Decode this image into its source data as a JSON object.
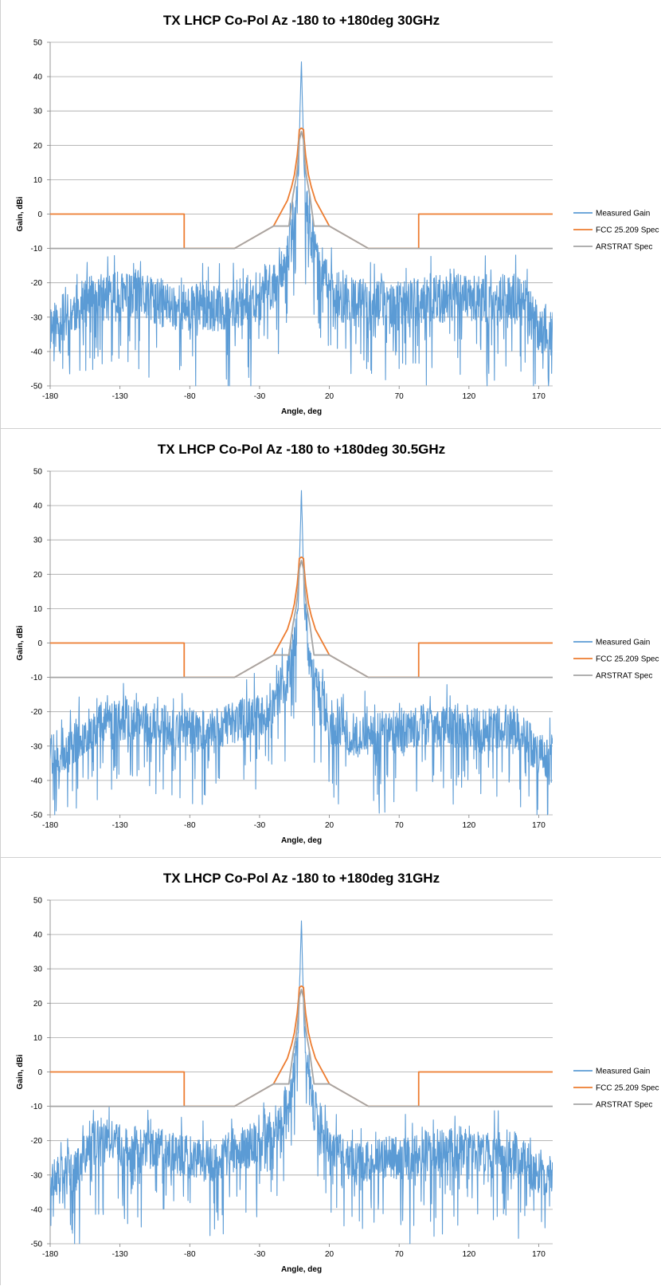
{
  "colors": {
    "measured": "#5B9BD5",
    "fcc": "#ED7D31",
    "arstrat": "#A5A5A5",
    "grid": "#A6A6A6",
    "axis": "#808080",
    "text": "#000000"
  },
  "chart_data": [
    {
      "type": "line",
      "title": "TX LHCP Co-Pol Az -180 to +180deg 30GHz",
      "xlabel": "Angle, deg",
      "ylabel": "Gain, dBi",
      "xlim": [
        -180,
        180
      ],
      "ylim": [
        -50,
        50
      ],
      "xticks": [
        "-180",
        "-130",
        "-80",
        "-30",
        "20",
        "70",
        "120",
        "170"
      ],
      "yticks": [
        "50",
        "40",
        "30",
        "20",
        "10",
        "0",
        "-10",
        "-20",
        "-30",
        "-40",
        "-50"
      ],
      "grid": true,
      "legend_position": "right",
      "series": [
        {
          "name": "Measured Gain",
          "x": [
            -180,
            -170,
            -160,
            -150,
            -140,
            -130,
            -120,
            -110,
            -100,
            -90,
            -80,
            -70,
            -60,
            -50,
            -40,
            -30,
            -20,
            -15,
            -10,
            -7,
            -5,
            -3,
            -2,
            -1,
            0,
            1,
            2,
            3,
            5,
            7,
            10,
            15,
            20,
            30,
            40,
            50,
            60,
            70,
            80,
            90,
            100,
            110,
            120,
            130,
            140,
            150,
            160,
            170,
            180
          ],
          "y": [
            -33,
            -30,
            -27,
            -25,
            -24,
            -24,
            -24,
            -25,
            -26,
            -27,
            -27,
            -27,
            -28,
            -26,
            -25,
            -24,
            -20,
            -16,
            -12,
            -6,
            -2,
            4,
            12,
            30,
            44,
            28,
            12,
            4,
            -2,
            -6,
            -12,
            -17,
            -21,
            -25,
            -26,
            -26,
            -26,
            -27,
            -26,
            -25,
            -25,
            -24,
            -24,
            -26,
            -25,
            -24,
            -26,
            -33,
            -35
          ],
          "noise": 9,
          "seed": 11
        },
        {
          "name": "FCC 25.209 Spec",
          "x": [
            -180,
            -84,
            -84,
            -48,
            -20,
            -10,
            -7,
            -7,
            -5,
            -3,
            -2,
            -1.5,
            0,
            1.5,
            2,
            3,
            5,
            7,
            7,
            10,
            20,
            48,
            84,
            84,
            180
          ],
          "y": [
            0,
            0,
            -10,
            -10,
            -3.5,
            4,
            8,
            8,
            11.5,
            17.1,
            21.5,
            24.6,
            25,
            24.6,
            21.5,
            17.1,
            11.5,
            8,
            8,
            4,
            -3.5,
            -10,
            -10,
            0,
            0
          ]
        },
        {
          "name": "ARSTRAT Spec",
          "x": [
            -180,
            -48,
            -20,
            -14,
            -9,
            -6,
            -4,
            -3,
            -2,
            -1.5,
            0,
            1.5,
            2,
            3,
            4,
            6,
            9,
            14,
            20,
            48,
            180
          ],
          "y": [
            -10,
            -10,
            -3.5,
            -3.5,
            -3.5,
            5.5,
            10,
            13,
            17.5,
            21.5,
            24,
            21.5,
            17.5,
            13,
            10,
            5.5,
            -3.5,
            -3.5,
            -3.5,
            -10,
            -10
          ]
        }
      ]
    },
    {
      "type": "line",
      "title": "TX LHCP Co-Pol Az -180 to +180deg 30.5GHz",
      "xlabel": "Angle, deg",
      "ylabel": "Gain, dBi",
      "xlim": [
        -180,
        180
      ],
      "ylim": [
        -50,
        50
      ],
      "xticks": [
        "-180",
        "-130",
        "-80",
        "-30",
        "20",
        "70",
        "120",
        "170"
      ],
      "yticks": [
        "50",
        "40",
        "30",
        "20",
        "10",
        "0",
        "-10",
        "-20",
        "-30",
        "-40",
        "-50"
      ],
      "grid": true,
      "legend_position": "right",
      "series": [
        {
          "name": "Measured Gain",
          "x": [
            -180,
            -170,
            -160,
            -150,
            -140,
            -130,
            -120,
            -110,
            -100,
            -90,
            -80,
            -70,
            -60,
            -50,
            -40,
            -30,
            -20,
            -15,
            -10,
            -7,
            -5,
            -3,
            -2,
            -1,
            0,
            1,
            2,
            3,
            5,
            7,
            10,
            15,
            20,
            30,
            40,
            50,
            60,
            70,
            80,
            90,
            100,
            110,
            120,
            130,
            140,
            150,
            160,
            170,
            180
          ],
          "y": [
            -32,
            -31,
            -28,
            -24,
            -22,
            -22,
            -23,
            -24,
            -24,
            -25,
            -25,
            -26,
            -25,
            -23,
            -22,
            -21,
            -17,
            -14,
            -10,
            -5,
            0,
            6,
            14,
            30,
            44,
            28,
            12,
            4,
            -3,
            -8,
            -12,
            -18,
            -22,
            -26,
            -27,
            -26,
            -26,
            -26,
            -25,
            -24,
            -24,
            -24,
            -24,
            -26,
            -25,
            -24,
            -27,
            -32,
            -33
          ],
          "noise": 8,
          "seed": 23
        },
        {
          "name": "FCC 25.209 Spec",
          "x": [
            -180,
            -84,
            -84,
            -48,
            -20,
            -10,
            -7,
            -7,
            -5,
            -3,
            -2,
            -1.5,
            0,
            1.5,
            2,
            3,
            5,
            7,
            7,
            10,
            20,
            48,
            84,
            84,
            180
          ],
          "y": [
            0,
            0,
            -10,
            -10,
            -3.5,
            4,
            8,
            8,
            11.5,
            17.1,
            21.5,
            24.6,
            25,
            24.6,
            21.5,
            17.1,
            11.5,
            8,
            8,
            4,
            -3.5,
            -10,
            -10,
            0,
            0
          ]
        },
        {
          "name": "ARSTRAT Spec",
          "x": [
            -180,
            -48,
            -20,
            -14,
            -9,
            -6,
            -4,
            -3,
            -2,
            -1.5,
            0,
            1.5,
            2,
            3,
            4,
            6,
            9,
            14,
            20,
            48,
            180
          ],
          "y": [
            -10,
            -10,
            -3.5,
            -3.5,
            -3.5,
            5.5,
            10,
            13,
            17.5,
            21.5,
            24,
            21.5,
            17.5,
            13,
            10,
            5.5,
            -3.5,
            -3.5,
            -3.5,
            -10,
            -10
          ]
        }
      ]
    },
    {
      "type": "line",
      "title": "TX LHCP Co-Pol Az -180 to +180deg 31GHz",
      "xlabel": "Angle, deg",
      "ylabel": "Gain, dBi",
      "xlim": [
        -180,
        180
      ],
      "ylim": [
        -50,
        50
      ],
      "xticks": [
        "-180",
        "-130",
        "-80",
        "-30",
        "20",
        "70",
        "120",
        "170"
      ],
      "yticks": [
        "50",
        "40",
        "30",
        "20",
        "10",
        "0",
        "-10",
        "-20",
        "-30",
        "-40",
        "-50"
      ],
      "grid": true,
      "legend_position": "right",
      "series": [
        {
          "name": "Measured Gain",
          "x": [
            -180,
            -170,
            -160,
            -150,
            -140,
            -130,
            -120,
            -110,
            -100,
            -90,
            -80,
            -70,
            -60,
            -50,
            -40,
            -30,
            -20,
            -15,
            -10,
            -7,
            -5,
            -3,
            -2,
            -1,
            0,
            1,
            2,
            3,
            5,
            7,
            10,
            15,
            20,
            30,
            40,
            50,
            60,
            70,
            80,
            90,
            100,
            110,
            120,
            130,
            140,
            150,
            160,
            170,
            180
          ],
          "y": [
            -32,
            -30,
            -28,
            -20,
            -20,
            -21,
            -22,
            -22,
            -23,
            -24,
            -25,
            -26,
            -26,
            -23,
            -22,
            -20,
            -16,
            -13,
            -9,
            -4,
            0,
            6,
            14,
            30,
            44,
            28,
            12,
            4,
            -3,
            -8,
            -12,
            -17,
            -21,
            -25,
            -26,
            -25,
            -25,
            -25,
            -25,
            -23,
            -23,
            -22,
            -22,
            -24,
            -23,
            -23,
            -26,
            -30,
            -32
          ],
          "noise": 8,
          "seed": 37
        },
        {
          "name": "FCC 25.209 Spec",
          "x": [
            -180,
            -84,
            -84,
            -48,
            -20,
            -10,
            -7,
            -7,
            -5,
            -3,
            -2,
            -1.5,
            0,
            1.5,
            2,
            3,
            5,
            7,
            7,
            10,
            20,
            48,
            84,
            84,
            180
          ],
          "y": [
            0,
            0,
            -10,
            -10,
            -3.5,
            4,
            8,
            8,
            11.5,
            17.1,
            21.5,
            24.6,
            25,
            24.6,
            21.5,
            17.1,
            11.5,
            8,
            8,
            4,
            -3.5,
            -10,
            -10,
            0,
            0
          ]
        },
        {
          "name": "ARSTRAT Spec",
          "x": [
            -180,
            -48,
            -20,
            -14,
            -9,
            -6,
            -4,
            -3,
            -2,
            -1.5,
            0,
            1.5,
            2,
            3,
            4,
            6,
            9,
            14,
            20,
            48,
            180
          ],
          "y": [
            -10,
            -10,
            -3.5,
            -3.5,
            -3.5,
            5.5,
            10,
            13,
            17.5,
            21.5,
            24,
            21.5,
            17.5,
            13,
            10,
            5.5,
            -3.5,
            -3.5,
            -3.5,
            -10,
            -10
          ]
        }
      ]
    }
  ]
}
